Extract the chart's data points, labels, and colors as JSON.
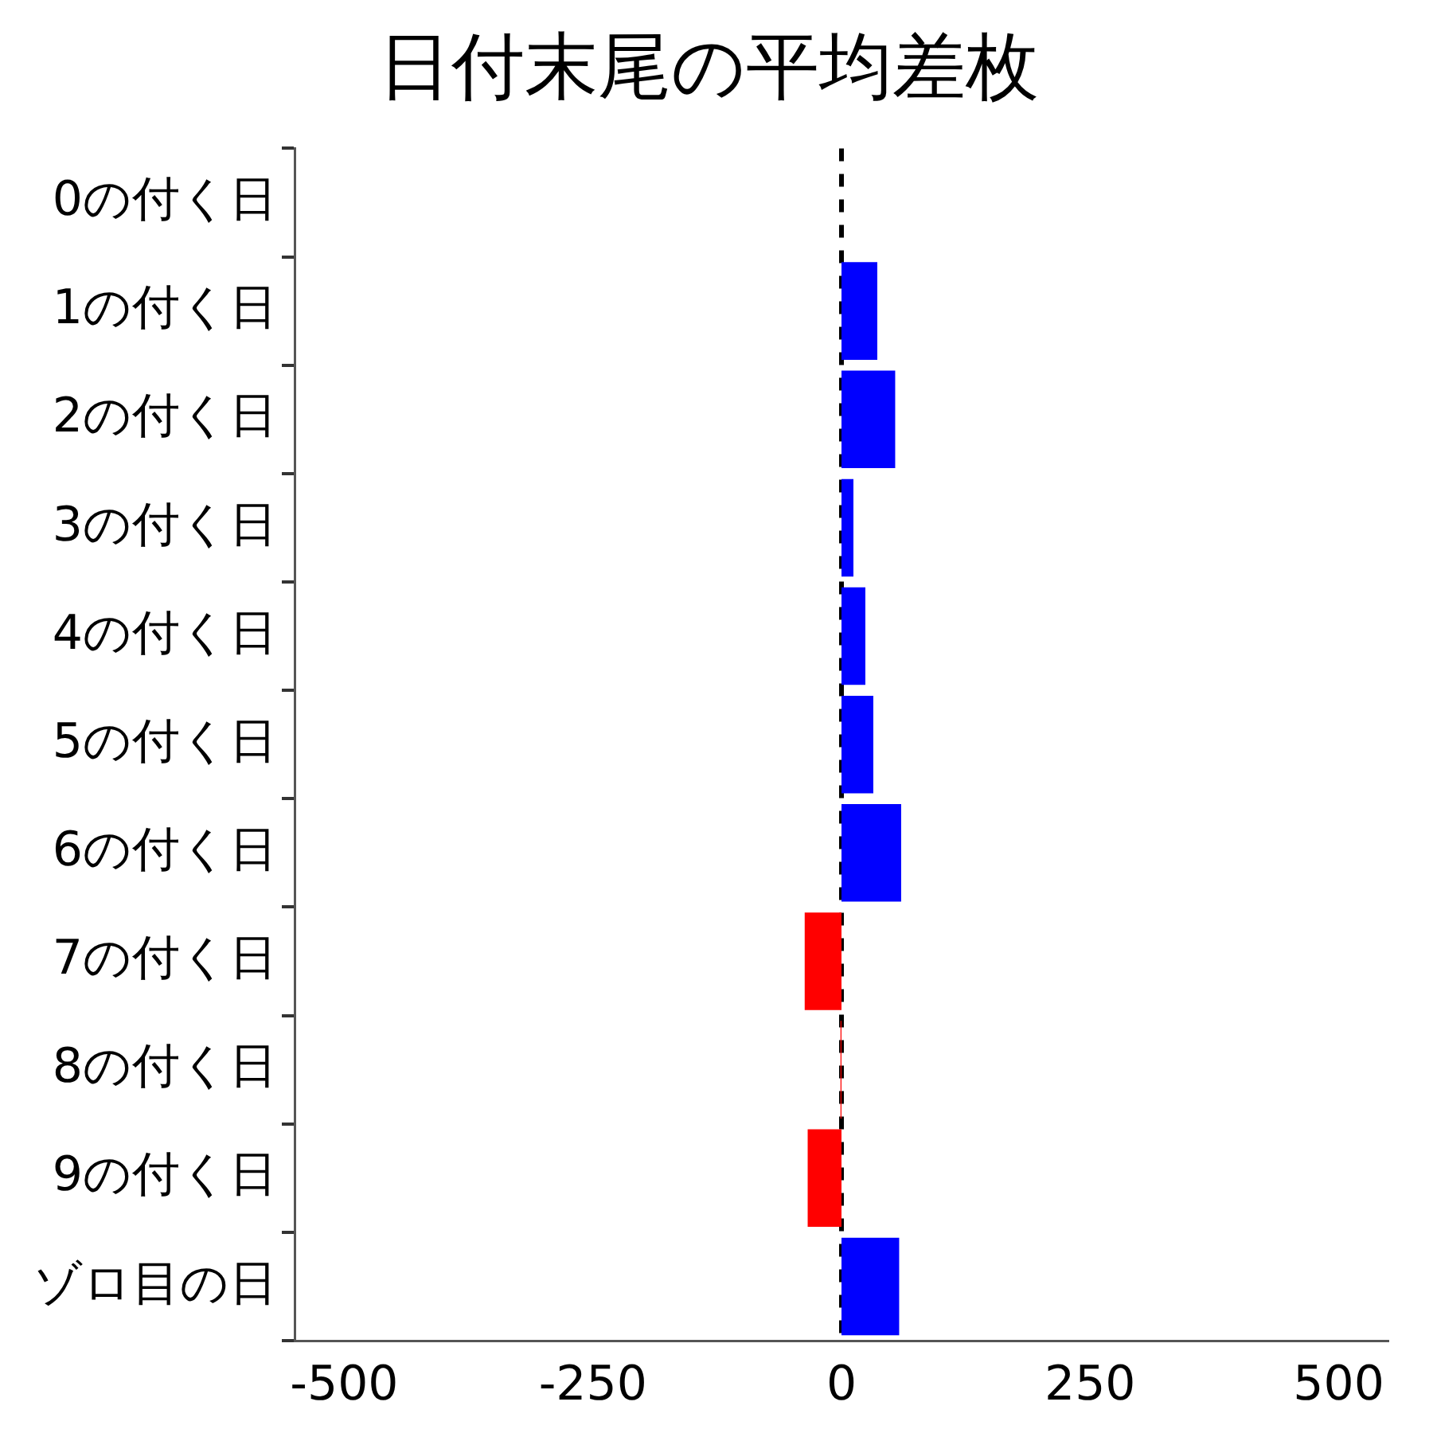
{
  "chart_data": {
    "type": "bar",
    "orientation": "horizontal",
    "title": "日付末尾の平均差枚",
    "categories": [
      "0の付く日",
      "1の付く日",
      "2の付く日",
      "3の付く日",
      "4の付く日",
      "5の付く日",
      "6の付く日",
      "7の付く日",
      "8の付く日",
      "9の付く日",
      "ゾロ目の日"
    ],
    "values": [
      null,
      36,
      54,
      12,
      24,
      32,
      60,
      -37,
      -1,
      -34,
      58
    ],
    "colors": [
      "#0000ff",
      "#0000ff",
      "#0000ff",
      "#0000ff",
      "#0000ff",
      "#0000ff",
      "#0000ff",
      "#ff0000",
      "#ff0000",
      "#ff0000",
      "#0000ff"
    ],
    "xlim": [
      -550,
      550
    ],
    "xticks": [
      -500,
      -250,
      0,
      250,
      500
    ],
    "ref_lines": [
      {
        "axis": "x",
        "value": 0,
        "color": "#000000",
        "line_style": "dashed"
      }
    ],
    "grid": false,
    "legend": false
  }
}
